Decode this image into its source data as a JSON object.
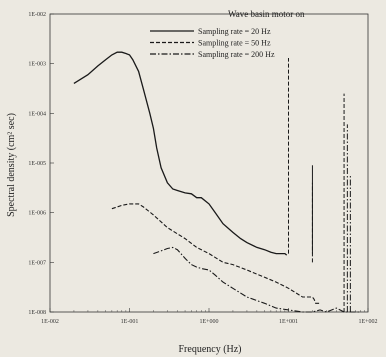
{
  "chart_data": {
    "type": "line",
    "title": "Wave basin motor on",
    "xlabel": "Frequency (Hz)",
    "ylabel": "Spectral density (cm² sec)",
    "xscale": "log",
    "yscale": "log",
    "xlim": [
      0.01,
      100
    ],
    "ylim": [
      1e-08,
      0.01
    ],
    "x_ticks": [
      "1E-002",
      "1E-001",
      "1E+000",
      "1E+001",
      "1E+002"
    ],
    "y_ticks": [
      "1E-002",
      "1E-003",
      "1E-004",
      "1E-005",
      "1E-006",
      "1E-007",
      "1E-008"
    ],
    "legend_position": "top-right",
    "series": [
      {
        "name": "Sampling rate = 20 Hz",
        "style": "solid",
        "x": [
          0.02,
          0.03,
          0.04,
          0.05,
          0.06,
          0.07,
          0.08,
          0.09,
          0.1,
          0.11,
          0.13,
          0.15,
          0.18,
          0.2,
          0.22,
          0.25,
          0.3,
          0.35,
          0.4,
          0.5,
          0.6,
          0.7,
          0.8,
          1.0,
          1.2,
          1.5,
          2.0,
          2.5,
          3.0,
          4.0,
          5.0,
          6.0,
          7.0,
          8.0,
          9.0,
          9.5
        ],
        "y": [
          0.0004,
          0.0006,
          0.0009,
          0.0012,
          0.0015,
          0.0017,
          0.0017,
          0.0016,
          0.0015,
          0.0012,
          0.0007,
          0.0003,
          0.0001,
          5e-05,
          2e-05,
          8e-06,
          4e-06,
          3e-06,
          2.8e-06,
          2.5e-06,
          2.4e-06,
          2e-06,
          2e-06,
          1.5e-06,
          1e-06,
          6e-07,
          4e-07,
          3e-07,
          2.5e-07,
          2e-07,
          1.8e-07,
          1.6e-07,
          1.5e-07,
          1.5e-07,
          1.5e-07,
          1.4e-07
        ]
      },
      {
        "name": "Sampling rate = 50 Hz",
        "style": "dashed",
        "x": [
          0.06,
          0.08,
          0.1,
          0.13,
          0.15,
          0.2,
          0.3,
          0.5,
          0.7,
          1.0,
          1.5,
          2.0,
          3.0,
          5.0,
          7.0,
          10.0,
          12.0,
          15.0,
          20.0,
          21.0,
          22.0,
          25.0
        ],
        "y": [
          1.2e-06,
          1.4e-06,
          1.5e-06,
          1.5e-06,
          1.3e-06,
          9e-07,
          5e-07,
          3e-07,
          2e-07,
          1.5e-07,
          1e-07,
          9e-08,
          7e-08,
          5e-08,
          4e-08,
          3e-08,
          2.5e-08,
          2e-08,
          2e-08,
          1.8e-08,
          1.5e-08,
          1.5e-08
        ]
      },
      {
        "name": "Sampling rate = 200 Hz",
        "style": "dash-dot",
        "x": [
          0.2,
          0.25,
          0.3,
          0.35,
          0.4,
          0.5,
          0.6,
          0.7,
          0.8,
          1.0,
          1.2,
          1.5,
          2.0,
          3.0,
          5.0,
          7.0,
          10.0,
          15.0,
          20.0,
          25.0,
          30.0,
          40.0,
          50.0,
          60.0,
          80.0
        ],
        "y": [
          1.5e-07,
          1.7e-07,
          1.9e-07,
          2e-07,
          1.8e-07,
          1.2e-07,
          9e-08,
          8e-08,
          7.5e-08,
          7e-08,
          5.5e-08,
          4e-08,
          3e-08,
          2e-08,
          1.5e-08,
          1.2e-08,
          1.1e-08,
          1e-08,
          1e-08,
          1.1e-08,
          1e-08,
          1.2e-08,
          1e-08,
          1e-08,
          1e-08
        ]
      }
    ],
    "spikes": [
      {
        "x": 10.0,
        "ylow": 1.5e-07,
        "ypeak": 0.0013,
        "style": "dashed"
      },
      {
        "x": 20.0,
        "ylow": 1.5e-07,
        "ypeak": 9e-06,
        "style": "solid"
      },
      {
        "x": 20.0,
        "ylow": 1e-07,
        "ypeak": 4e-06,
        "style": "dashed"
      },
      {
        "x": 50.0,
        "ylow": 1e-08,
        "ypeak": 0.00025,
        "style": "dashed"
      },
      {
        "x": 55.0,
        "ylow": 1e-08,
        "ypeak": 6e-05,
        "style": "dash-dot"
      },
      {
        "x": 60.0,
        "ylow": 1e-08,
        "ypeak": 6e-06,
        "style": "dash-dot"
      }
    ]
  }
}
